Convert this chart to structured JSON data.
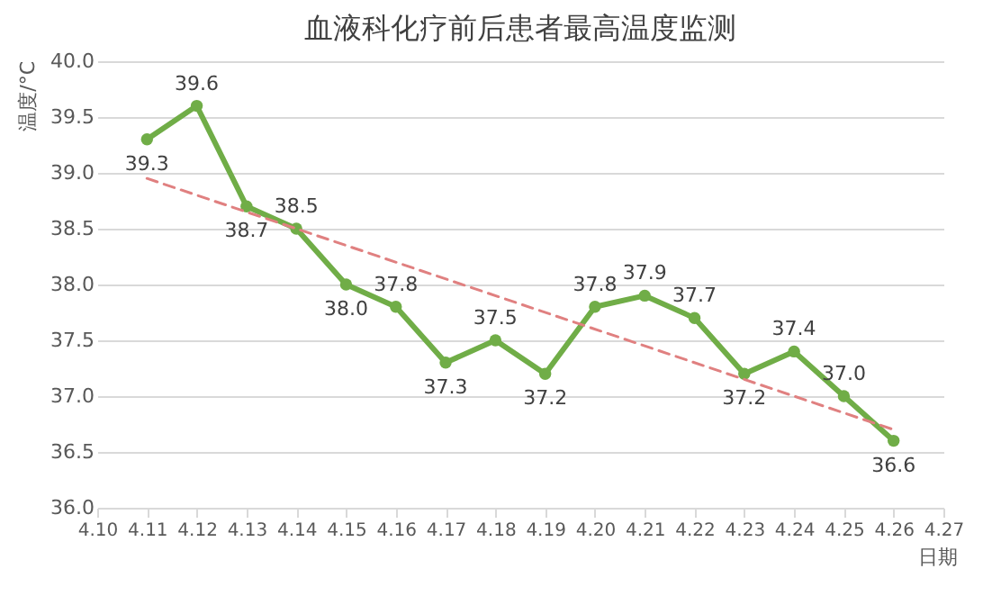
{
  "chart_data": {
    "type": "line",
    "title": "血液科化疗前后患者最高温度监测",
    "ylabel": "温度/°C",
    "xlabel": "日期",
    "x": [
      4.11,
      4.12,
      4.13,
      4.14,
      4.15,
      4.16,
      4.17,
      4.18,
      4.19,
      4.2,
      4.21,
      4.22,
      4.23,
      4.24,
      4.25,
      4.26
    ],
    "series": [
      {
        "color": "#70ad47",
        "marker": "circle",
        "line_style": "solid",
        "values": [
          39.3,
          39.6,
          38.7,
          38.5,
          38.0,
          37.8,
          37.3,
          37.5,
          37.2,
          37.8,
          37.9,
          37.7,
          37.2,
          37.4,
          37.0,
          36.6
        ],
        "value_labels": [
          "39.3",
          "39.6",
          "38.7",
          "38.5",
          "38.0",
          "37.8",
          "37.3",
          "37.5",
          "37.2",
          "37.8",
          "37.9",
          "37.7",
          "37.2",
          "37.4",
          "37.0",
          "36.6"
        ]
      },
      {
        "type": "line",
        "color": "#e08080",
        "marker": "none",
        "line_style": "dashed",
        "x": [
          4.11,
          4.26
        ],
        "values": [
          38.95,
          36.7
        ]
      }
    ],
    "xlim": [
      4.1,
      4.27
    ],
    "xticks": [
      {
        "value": 4.1,
        "label": "4.10"
      },
      {
        "value": 4.11,
        "label": "4.11"
      },
      {
        "value": 4.12,
        "label": "4.12"
      },
      {
        "value": 4.13,
        "label": "4.13"
      },
      {
        "value": 4.14,
        "label": "4.14"
      },
      {
        "value": 4.15,
        "label": "4.15"
      },
      {
        "value": 4.16,
        "label": "4.16"
      },
      {
        "value": 4.17,
        "label": "4.17"
      },
      {
        "value": 4.18,
        "label": "4.18"
      },
      {
        "value": 4.19,
        "label": "4.19"
      },
      {
        "value": 4.2,
        "label": "4.20"
      },
      {
        "value": 4.21,
        "label": "4.21"
      },
      {
        "value": 4.22,
        "label": "4.22"
      },
      {
        "value": 4.23,
        "label": "4.23"
      },
      {
        "value": 4.24,
        "label": "4.24"
      },
      {
        "value": 4.25,
        "label": "4.25"
      },
      {
        "value": 4.26,
        "label": "4.26"
      },
      {
        "value": 4.27,
        "label": "4.27"
      }
    ],
    "ylim": [
      36.0,
      40.0
    ],
    "yticks": [
      {
        "value": 36.0,
        "label": "36.0"
      },
      {
        "value": 36.5,
        "label": "36.5"
      },
      {
        "value": 37.0,
        "label": "37.0"
      },
      {
        "value": 37.5,
        "label": "37.5"
      },
      {
        "value": 38.0,
        "label": "38.0"
      },
      {
        "value": 38.5,
        "label": "38.5"
      },
      {
        "value": 39.0,
        "label": "39.0"
      },
      {
        "value": 39.5,
        "label": "39.5"
      },
      {
        "value": 40.0,
        "label": "40.0"
      }
    ],
    "grid": "y"
  }
}
